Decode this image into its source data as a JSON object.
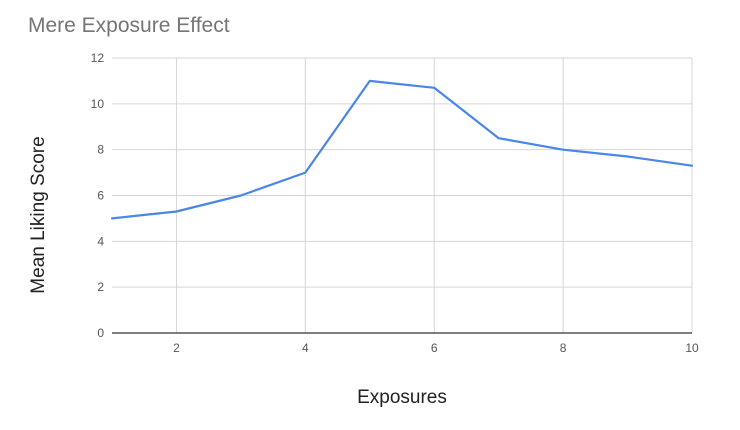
{
  "chart_data": {
    "type": "line",
    "title": "Mere Exposure Effect",
    "xlabel": "Exposures",
    "ylabel": "Mean Liking Score",
    "xlim": [
      1,
      10
    ],
    "ylim": [
      0,
      12
    ],
    "x_ticks": [
      2,
      4,
      6,
      8,
      10
    ],
    "y_ticks": [
      0,
      2,
      4,
      6,
      8,
      10,
      12
    ],
    "grid": true,
    "legend": "none",
    "series": [
      {
        "color": "#4a86e8",
        "x": [
          1,
          2,
          3,
          4,
          5,
          6,
          7,
          8,
          9,
          10
        ],
        "values": [
          5.0,
          5.3,
          6.0,
          7.0,
          11.0,
          10.7,
          8.5,
          8.0,
          7.7,
          7.3
        ]
      }
    ]
  }
}
